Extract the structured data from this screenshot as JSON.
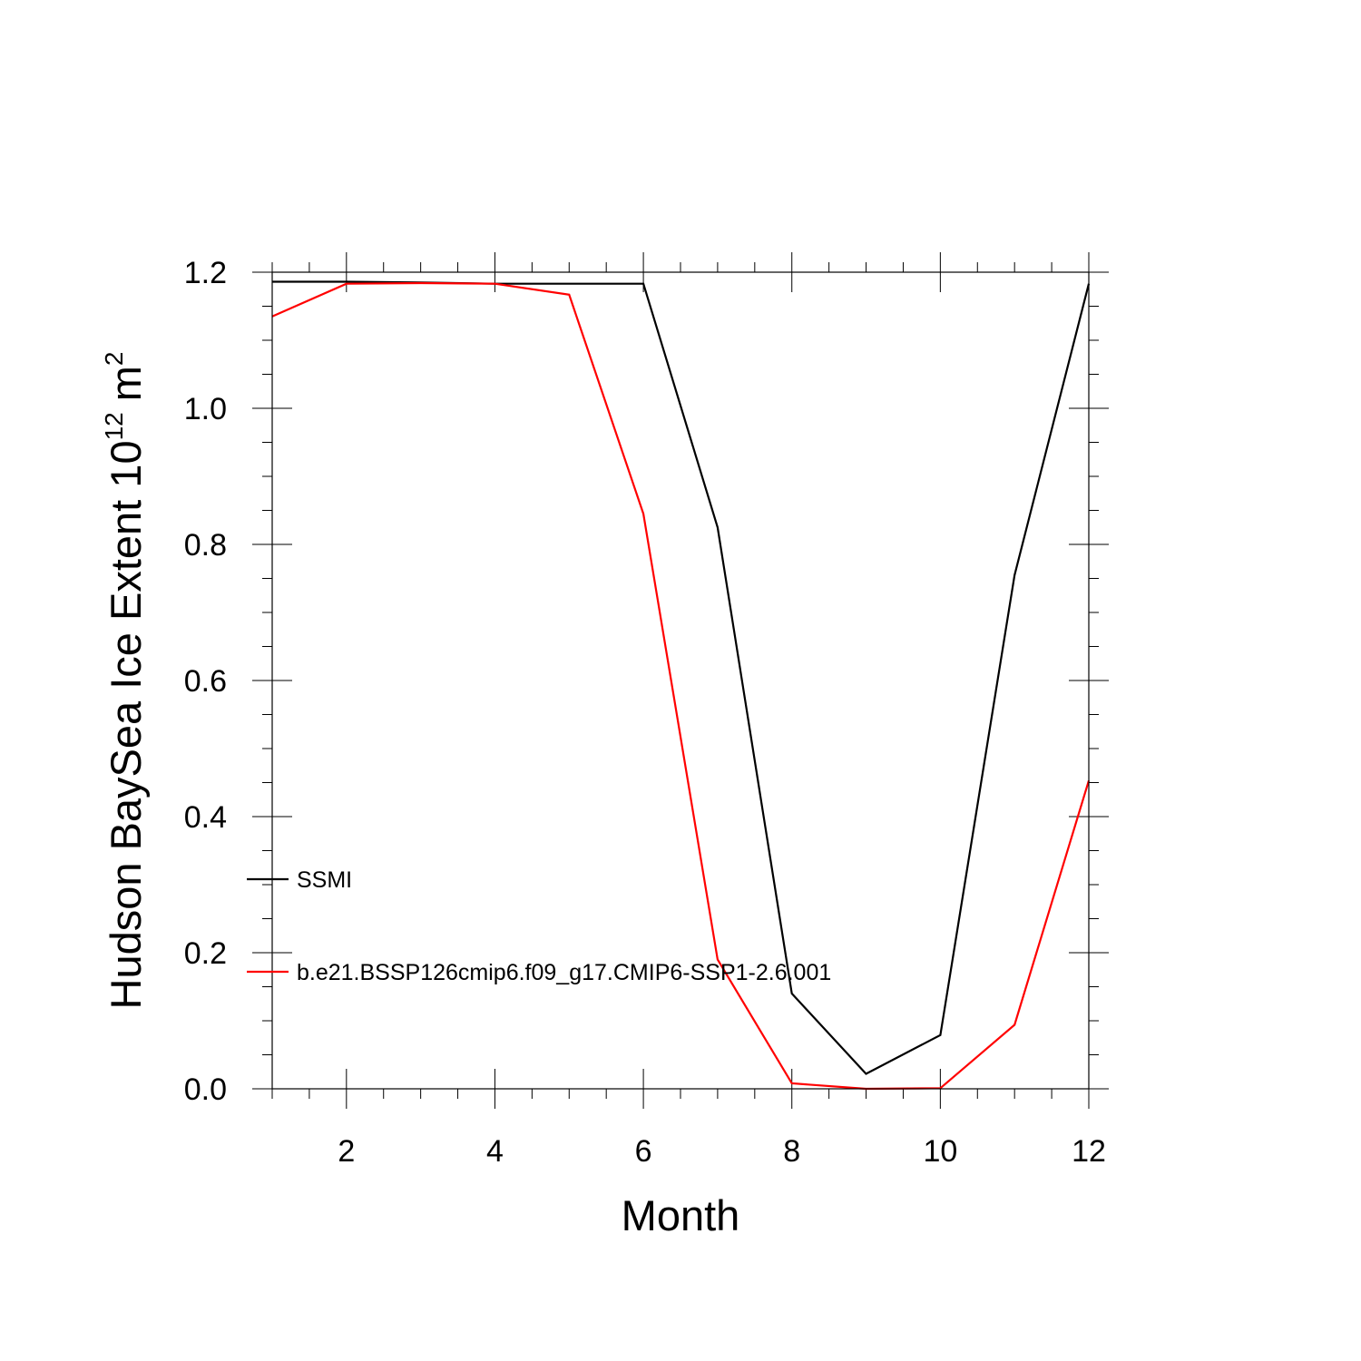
{
  "chart_data": {
    "type": "line",
    "xlabel": "Month",
    "ylabel": {
      "text": "Hudson BaySea Ice Extent 10",
      "exponent": "12",
      "unit": "m",
      "unit_exponent": "2"
    },
    "xlim": [
      1,
      12
    ],
    "ylim": [
      0,
      1.2
    ],
    "x_ticks": [
      2,
      4,
      6,
      8,
      10,
      12
    ],
    "y_ticks": [
      0.0,
      0.2,
      0.4,
      0.6,
      0.8,
      1.0,
      1.2
    ],
    "x_tick_labels": [
      "2",
      "4",
      "6",
      "8",
      "10",
      "12"
    ],
    "y_tick_labels": [
      "0.0",
      "0.2",
      "0.4",
      "0.6",
      "0.8",
      "1.0",
      "1.2"
    ],
    "grid": false,
    "legend_position": "inside-left",
    "x": [
      1,
      2,
      3,
      4,
      5,
      6,
      7,
      8,
      9,
      10,
      11,
      12
    ],
    "series": [
      {
        "name": "SSMI",
        "color": "#000000",
        "values": [
          1.186,
          1.186,
          1.185,
          1.183,
          1.183,
          1.183,
          0.825,
          0.14,
          0.022,
          0.079,
          0.755,
          1.183
        ]
      },
      {
        "name": "b.e21.BSSP126cmip6.f09_g17.CMIP6-SSP1-2.6.001",
        "color": "#ff0000",
        "values": [
          1.135,
          1.183,
          1.184,
          1.183,
          1.167,
          0.845,
          0.19,
          0.008,
          0.0,
          0.001,
          0.094,
          0.453
        ]
      }
    ]
  }
}
